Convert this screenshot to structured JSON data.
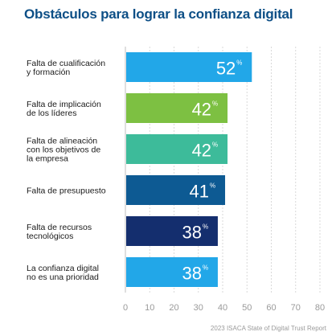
{
  "title": "Obstáculos para lograr la confianza digital",
  "source": "2023 ISACA State of Digital Trust Report",
  "chart_data": {
    "type": "bar",
    "orientation": "horizontal",
    "categories": [
      [
        "Falta de cualificación",
        "y formación"
      ],
      [
        "Falta de implicación",
        "de los líderes"
      ],
      [
        "Falta de alineación",
        "con los objetivos de",
        "la empresa"
      ],
      [
        "Falta de presupuesto"
      ],
      [
        "Falta de recursos",
        "tecnológicos"
      ],
      [
        "La confianza digital",
        "no es una prioridad"
      ]
    ],
    "values": [
      52,
      42,
      42,
      41,
      38,
      38
    ],
    "value_suffix": "%",
    "bar_colors": [
      "#22a7e8",
      "#7dc042",
      "#3dbb9a",
      "#0d5a93",
      "#142e6e",
      "#22a7e8"
    ],
    "xlim": [
      0,
      80
    ],
    "xticks": [
      0,
      10,
      20,
      30,
      40,
      50,
      60,
      70,
      80
    ],
    "grid": true
  }
}
